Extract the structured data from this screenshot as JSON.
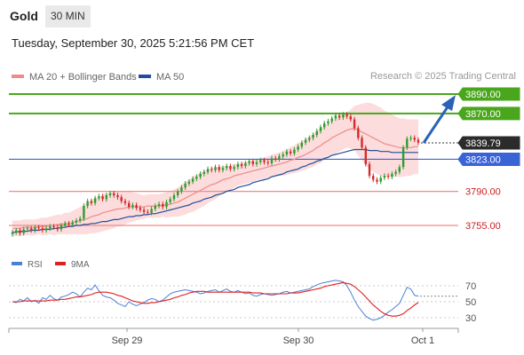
{
  "header": {
    "symbol": "Gold",
    "interval": "30 MIN",
    "datetime": "Tuesday, September 30, 2025 5:21:56 PM CET"
  },
  "legend": {
    "ma20": {
      "label": "MA 20 + Bollinger Bands",
      "color": "#f08a8a"
    },
    "ma50": {
      "label": "MA 50",
      "color": "#1f4e9c"
    }
  },
  "credit": "Research © 2025 Trading Central",
  "rsi_legend": {
    "rsi": {
      "label": "RSI",
      "color": "#4a7fd6"
    },
    "ma9": {
      "label": "9MA",
      "color": "#e02020"
    }
  },
  "colors": {
    "resistance": "#4aa61c",
    "support": "#f08a8a",
    "support_text": "#cc2222",
    "pivot": "#3a63d8",
    "bull": "#2e9c2e",
    "bear": "#d42a2a",
    "band_fill": "#fbd6d6",
    "arrow": "#2a62b8",
    "price_tag": "#2b2b2b"
  },
  "chart_data": [
    {
      "type": "candlestick",
      "title": "Gold 30 MIN",
      "x_ticks": [
        "Sep 29",
        "Sep 30",
        "Oct 1"
      ],
      "price_range": [
        3737,
        3898
      ],
      "levels": [
        {
          "value": 3890.0,
          "label": "3890.00",
          "kind": "resistance"
        },
        {
          "value": 3870.0,
          "label": "3870.00",
          "kind": "resistance"
        },
        {
          "value": 3823.0,
          "label": "3823.00",
          "kind": "pivot"
        },
        {
          "value": 3790.0,
          "label": "3790.00",
          "kind": "support"
        },
        {
          "value": 3755.0,
          "label": "3755.00",
          "kind": "support"
        }
      ],
      "last_price": {
        "value": 3839.79,
        "label": "3839.79"
      },
      "close": [
        3748,
        3750,
        3747,
        3751,
        3752,
        3750,
        3753,
        3752,
        3750,
        3752,
        3754,
        3753,
        3751,
        3755,
        3757,
        3756,
        3758,
        3760,
        3762,
        3775,
        3780,
        3778,
        3783,
        3785,
        3782,
        3786,
        3788,
        3786,
        3784,
        3780,
        3778,
        3774,
        3776,
        3773,
        3771,
        3769,
        3768,
        3772,
        3775,
        3777,
        3774,
        3779,
        3782,
        3786,
        3790,
        3794,
        3798,
        3800,
        3803,
        3805,
        3808,
        3810,
        3813,
        3812,
        3815,
        3812,
        3814,
        3816,
        3813,
        3815,
        3818,
        3816,
        3819,
        3821,
        3818,
        3820,
        3822,
        3820,
        3819,
        3824,
        3823,
        3826,
        3828,
        3831,
        3829,
        3833,
        3836,
        3840,
        3843,
        3845,
        3848,
        3852,
        3856,
        3860,
        3862,
        3865,
        3868,
        3866,
        3869,
        3867,
        3864,
        3855,
        3845,
        3835,
        3818,
        3806,
        3802,
        3800,
        3804,
        3806,
        3805,
        3808,
        3810,
        3815,
        3835,
        3844,
        3845,
        3843,
        3840
      ],
      "ma20": [
        3752,
        3752,
        3752,
        3753,
        3753,
        3753,
        3753,
        3754,
        3754,
        3754,
        3755,
        3755,
        3756,
        3756,
        3757,
        3757,
        3758,
        3759,
        3760,
        3761,
        3762,
        3764,
        3765,
        3766,
        3768,
        3769,
        3770,
        3771,
        3772,
        3772,
        3773,
        3774,
        3774,
        3774,
        3774,
        3774,
        3775,
        3775,
        3775,
        3775,
        3776,
        3776,
        3777,
        3778,
        3779,
        3781,
        3783,
        3785,
        3787,
        3789,
        3791,
        3793,
        3795,
        3797,
        3798,
        3800,
        3802,
        3803,
        3804,
        3806,
        3807,
        3808,
        3809,
        3810,
        3811,
        3812,
        3813,
        3814,
        3815,
        3816,
        3817,
        3818,
        3819,
        3820,
        3822,
        3823,
        3825,
        3826,
        3828,
        3830,
        3832,
        3835,
        3837,
        3840,
        3842,
        3845,
        3847,
        3849,
        3851,
        3853,
        3854,
        3855,
        3853,
        3851,
        3849,
        3847,
        3845,
        3843,
        3841,
        3839,
        3838,
        3837,
        3836,
        3835,
        3835,
        3835,
        3835,
        3836,
        3836
      ],
      "ma50": [
        3748,
        3748,
        3749,
        3749,
        3749,
        3750,
        3750,
        3750,
        3751,
        3751,
        3751,
        3752,
        3752,
        3753,
        3753,
        3754,
        3754,
        3755,
        3755,
        3756,
        3756,
        3757,
        3757,
        3758,
        3759,
        3759,
        3760,
        3761,
        3761,
        3762,
        3763,
        3764,
        3764,
        3765,
        3765,
        3766,
        3766,
        3767,
        3767,
        3768,
        3769,
        3770,
        3771,
        3772,
        3773,
        3774,
        3775,
        3776,
        3778,
        3779,
        3780,
        3782,
        3783,
        3784,
        3786,
        3787,
        3788,
        3790,
        3791,
        3792,
        3794,
        3795,
        3796,
        3797,
        3799,
        3800,
        3801,
        3802,
        3803,
        3805,
        3806,
        3807,
        3808,
        3810,
        3811,
        3812,
        3813,
        3815,
        3816,
        3818,
        3819,
        3821,
        3822,
        3824,
        3825,
        3827,
        3828,
        3829,
        3830,
        3831,
        3832,
        3833,
        3833,
        3833,
        3833,
        3832,
        3832,
        3832,
        3831,
        3831,
        3831,
        3830,
        3830,
        3830,
        3830,
        3830,
        3830,
        3830,
        3830
      ],
      "bb_width": [
        8,
        8,
        8,
        8,
        8,
        8,
        8,
        8,
        9,
        9,
        9,
        10,
        10,
        10,
        11,
        11,
        12,
        13,
        14,
        15,
        16,
        17,
        18,
        18,
        19,
        19,
        19,
        19,
        18,
        18,
        17,
        16,
        15,
        14,
        13,
        12,
        12,
        12,
        12,
        12,
        12,
        13,
        13,
        14,
        15,
        16,
        17,
        17,
        18,
        18,
        18,
        18,
        17,
        17,
        16,
        15,
        14,
        13,
        12,
        12,
        11,
        11,
        11,
        11,
        11,
        11,
        11,
        11,
        11,
        12,
        12,
        12,
        13,
        13,
        14,
        14,
        15,
        15,
        16,
        16,
        17,
        17,
        18,
        18,
        18,
        18,
        18,
        18,
        18,
        18,
        20,
        23,
        26,
        29,
        32,
        34,
        35,
        35,
        35,
        34,
        33,
        32,
        31,
        30,
        30,
        29,
        29,
        28,
        28
      ]
    },
    {
      "type": "line",
      "title": "RSI",
      "x_ticks": [
        "Sep 29",
        "Sep 30",
        "Oct 1"
      ],
      "y_ticks": [
        70,
        50,
        30
      ],
      "ylim": [
        20,
        80
      ],
      "series": [
        {
          "name": "RSI",
          "values": [
            50,
            49,
            53,
            51,
            55,
            50,
            52,
            48,
            55,
            53,
            58,
            54,
            52,
            56,
            57,
            59,
            62,
            60,
            56,
            62,
            67,
            65,
            71,
            64,
            58,
            56,
            55,
            52,
            48,
            46,
            44,
            50,
            47,
            45,
            47,
            49,
            52,
            54,
            53,
            50,
            52,
            56,
            60,
            62,
            63,
            64,
            65,
            64,
            63,
            62,
            60,
            61,
            63,
            64,
            65,
            62,
            64,
            66,
            63,
            62,
            64,
            62,
            60,
            61,
            58,
            57,
            59,
            60,
            59,
            58,
            59,
            60,
            62,
            63,
            61,
            62,
            63,
            64,
            65,
            66,
            69,
            71,
            73,
            74,
            75,
            76,
            77,
            76,
            75,
            70,
            62,
            52,
            44,
            38,
            32,
            29,
            27,
            28,
            30,
            33,
            37,
            40,
            44,
            48,
            58,
            68,
            66,
            58,
            57
          ]
        },
        {
          "name": "9MA",
          "values": [
            50,
            50,
            50,
            51,
            51,
            51,
            51,
            51,
            51,
            51,
            52,
            52,
            52,
            53,
            53,
            54,
            55,
            56,
            56,
            57,
            58,
            59,
            61,
            62,
            62,
            62,
            61,
            60,
            58,
            57,
            55,
            53,
            51,
            50,
            49,
            48,
            48,
            49,
            49,
            50,
            51,
            52,
            53,
            55,
            56,
            58,
            59,
            61,
            62,
            63,
            63,
            63,
            62,
            62,
            62,
            62,
            62,
            62,
            62,
            62,
            62,
            62,
            62,
            62,
            61,
            61,
            61,
            60,
            60,
            60,
            60,
            60,
            60,
            60,
            61,
            61,
            61,
            62,
            63,
            64,
            65,
            66,
            67,
            69,
            70,
            71,
            72,
            73,
            74,
            73,
            72,
            69,
            65,
            61,
            56,
            51,
            46,
            42,
            38,
            35,
            33,
            32,
            32,
            33,
            35,
            39,
            42,
            46,
            49
          ]
        }
      ]
    }
  ]
}
